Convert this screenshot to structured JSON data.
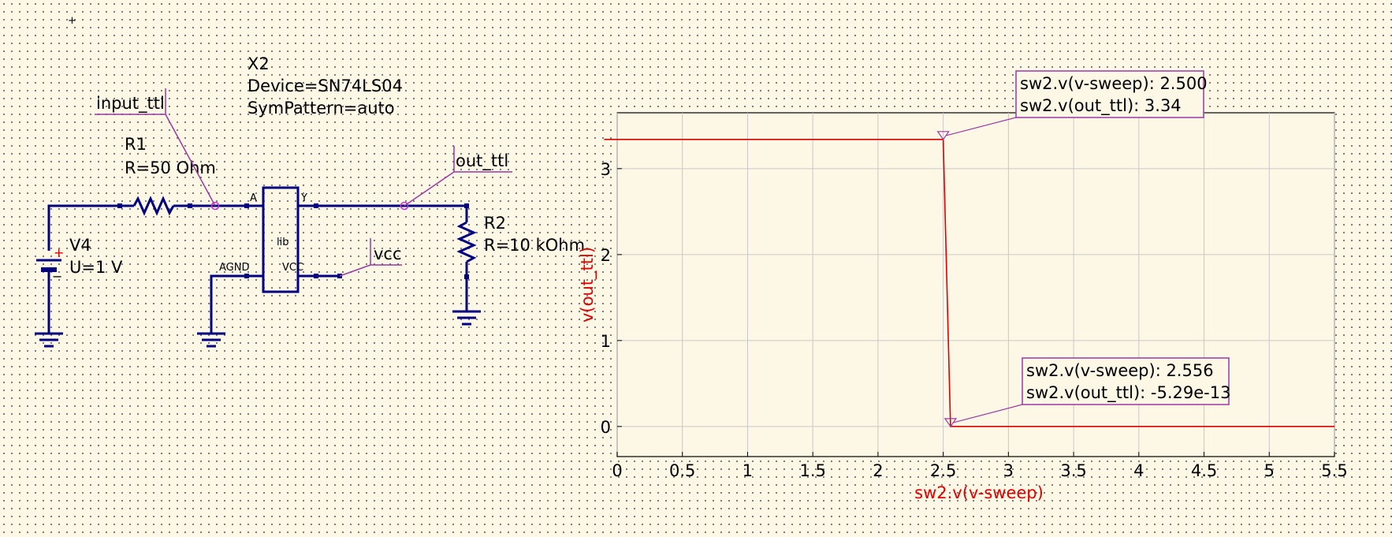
{
  "schematic": {
    "cursor_glyph": "+",
    "source": {
      "name": "V4",
      "param": "U=1 V",
      "plus": "+",
      "minus": "−"
    },
    "resistor1": {
      "name": "R1",
      "param": "R=50 Ohm"
    },
    "resistor2": {
      "name": "R2",
      "param": "R=10 kOhm"
    },
    "inverter": {
      "name": "X2",
      "device": "Device=SN74LS04",
      "sympattern": "SymPattern=auto",
      "body_label": "lib",
      "pin_a": "A",
      "pin_y": "Y",
      "pin_agnd": "AGND",
      "pin_vcc": "VCC"
    },
    "labels": {
      "input": "input_ttl",
      "output": "out_ttl",
      "vcc": "vcc"
    }
  },
  "chart_data": {
    "type": "line",
    "xlabel": "sw2.v(v-sweep)",
    "ylabel": "v(out_ttl)",
    "xlim": [
      0,
      5.5
    ],
    "ylim": [
      -0.35,
      3.65
    ],
    "x_ticks": [
      "0",
      "0.5",
      "1",
      "1.5",
      "2",
      "2.5",
      "3",
      "3.5",
      "4",
      "4.5",
      "5",
      "5.5"
    ],
    "y_ticks": [
      "0",
      "1",
      "2",
      "3"
    ],
    "grid": true,
    "series": [
      {
        "color": "#e00000",
        "points": [
          [
            -0.1,
            3.34
          ],
          [
            2.5,
            3.34
          ],
          [
            2.556,
            0
          ],
          [
            5.5,
            0
          ]
        ]
      }
    ],
    "markers": [
      {
        "x": 2.5,
        "y": 3.34,
        "line1": "sw2.v(v-sweep): 2.500",
        "line2": "sw2.v(out_ttl): 3.34"
      },
      {
        "x": 2.556,
        "y": 0,
        "line1": "sw2.v(v-sweep): 2.556",
        "line2": "sw2.v(out_ttl): -5.29e-13"
      }
    ]
  }
}
